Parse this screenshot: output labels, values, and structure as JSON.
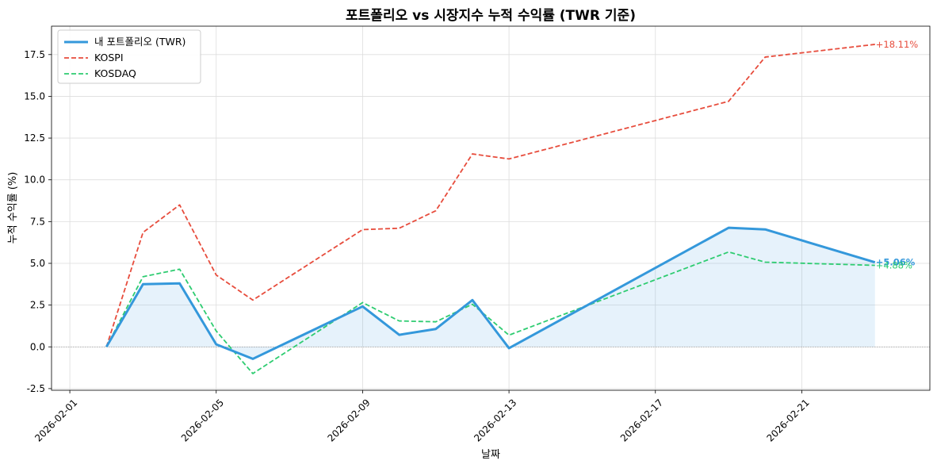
{
  "chart_data": {
    "type": "line",
    "title": "포트폴리오 vs 시장지수 누적 수익률 (TWR 기준)",
    "xlabel": "날짜",
    "ylabel": "누적 수익률 (%)",
    "xlim": [
      "2026-01-31T12:00",
      "2026-02-24T12:00"
    ],
    "ylim": [
      -2.6,
      19.2
    ],
    "x_ticks": [
      "2026-02-01",
      "2026-02-05",
      "2026-02-09",
      "2026-02-13",
      "2026-02-17",
      "2026-02-21"
    ],
    "y_ticks": [
      -2.5,
      0.0,
      2.5,
      5.0,
      7.5,
      10.0,
      12.5,
      15.0,
      17.5
    ],
    "y_tick_labels": [
      "-2.5",
      "0.0",
      "2.5",
      "5.0",
      "7.5",
      "10.0",
      "12.5",
      "15.0",
      "17.5"
    ],
    "grid": true,
    "legend_position": "top-left",
    "baseline": 0,
    "series": [
      {
        "name": "내 포트폴리오 (TWR)",
        "color": "#3498db",
        "style": "solid",
        "fill_to_zero": true,
        "x": [
          "2026-02-02",
          "2026-02-03",
          "2026-02-04",
          "2026-02-05",
          "2026-02-06",
          "2026-02-09",
          "2026-02-10",
          "2026-02-11",
          "2026-02-12",
          "2026-02-13",
          "2026-02-19",
          "2026-02-20",
          "2026-02-23"
        ],
        "values": [
          0.0,
          3.75,
          3.8,
          0.15,
          -0.72,
          2.42,
          0.72,
          1.07,
          2.8,
          -0.08,
          7.13,
          7.03,
          5.06
        ],
        "end_label": "+5.06%"
      },
      {
        "name": "KOSPI",
        "color": "#e74c3c",
        "style": "dashed",
        "x": [
          "2026-02-02",
          "2026-02-03",
          "2026-02-04",
          "2026-02-05",
          "2026-02-06",
          "2026-02-09",
          "2026-02-10",
          "2026-02-11",
          "2026-02-12",
          "2026-02-13",
          "2026-02-19",
          "2026-02-20",
          "2026-02-23"
        ],
        "values": [
          0.0,
          6.85,
          8.5,
          4.3,
          2.8,
          7.02,
          7.1,
          8.15,
          11.55,
          11.25,
          14.7,
          17.35,
          18.11
        ],
        "end_label": "+18.11%"
      },
      {
        "name": "KOSDAQ",
        "color": "#2ecc71",
        "style": "dashed",
        "x": [
          "2026-02-02",
          "2026-02-03",
          "2026-02-04",
          "2026-02-05",
          "2026-02-06",
          "2026-02-09",
          "2026-02-10",
          "2026-02-11",
          "2026-02-12",
          "2026-02-13",
          "2026-02-19",
          "2026-02-20",
          "2026-02-23"
        ],
        "values": [
          0.0,
          4.2,
          4.65,
          0.95,
          -1.6,
          2.65,
          1.55,
          1.5,
          2.55,
          0.7,
          5.68,
          5.07,
          4.88
        ],
        "end_label": "+4.88%"
      }
    ]
  }
}
